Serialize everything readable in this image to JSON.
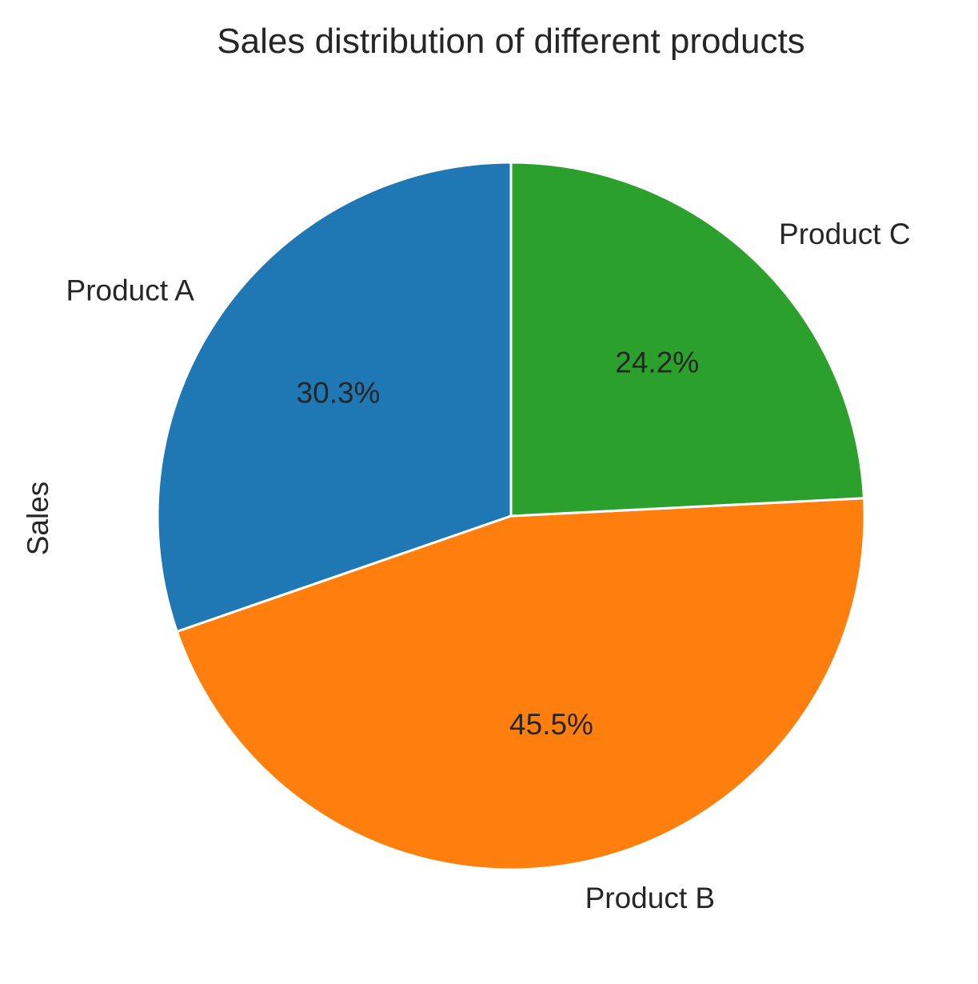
{
  "chart_data": {
    "type": "pie",
    "title": "Sales distribution of different products",
    "ylabel": "Sales",
    "startangle": 90,
    "direction": "counterclockwise",
    "slices": [
      {
        "label": "Product A",
        "percent": 30.3,
        "pct_label": "30.3%",
        "color": "#1f77b4"
      },
      {
        "label": "Product B",
        "percent": 45.5,
        "pct_label": "45.5%",
        "color": "#ff7f0e"
      },
      {
        "label": "Product C",
        "percent": 24.2,
        "pct_label": "24.2%",
        "color": "#2ca02c"
      }
    ],
    "edge_color": "#ffffff"
  }
}
